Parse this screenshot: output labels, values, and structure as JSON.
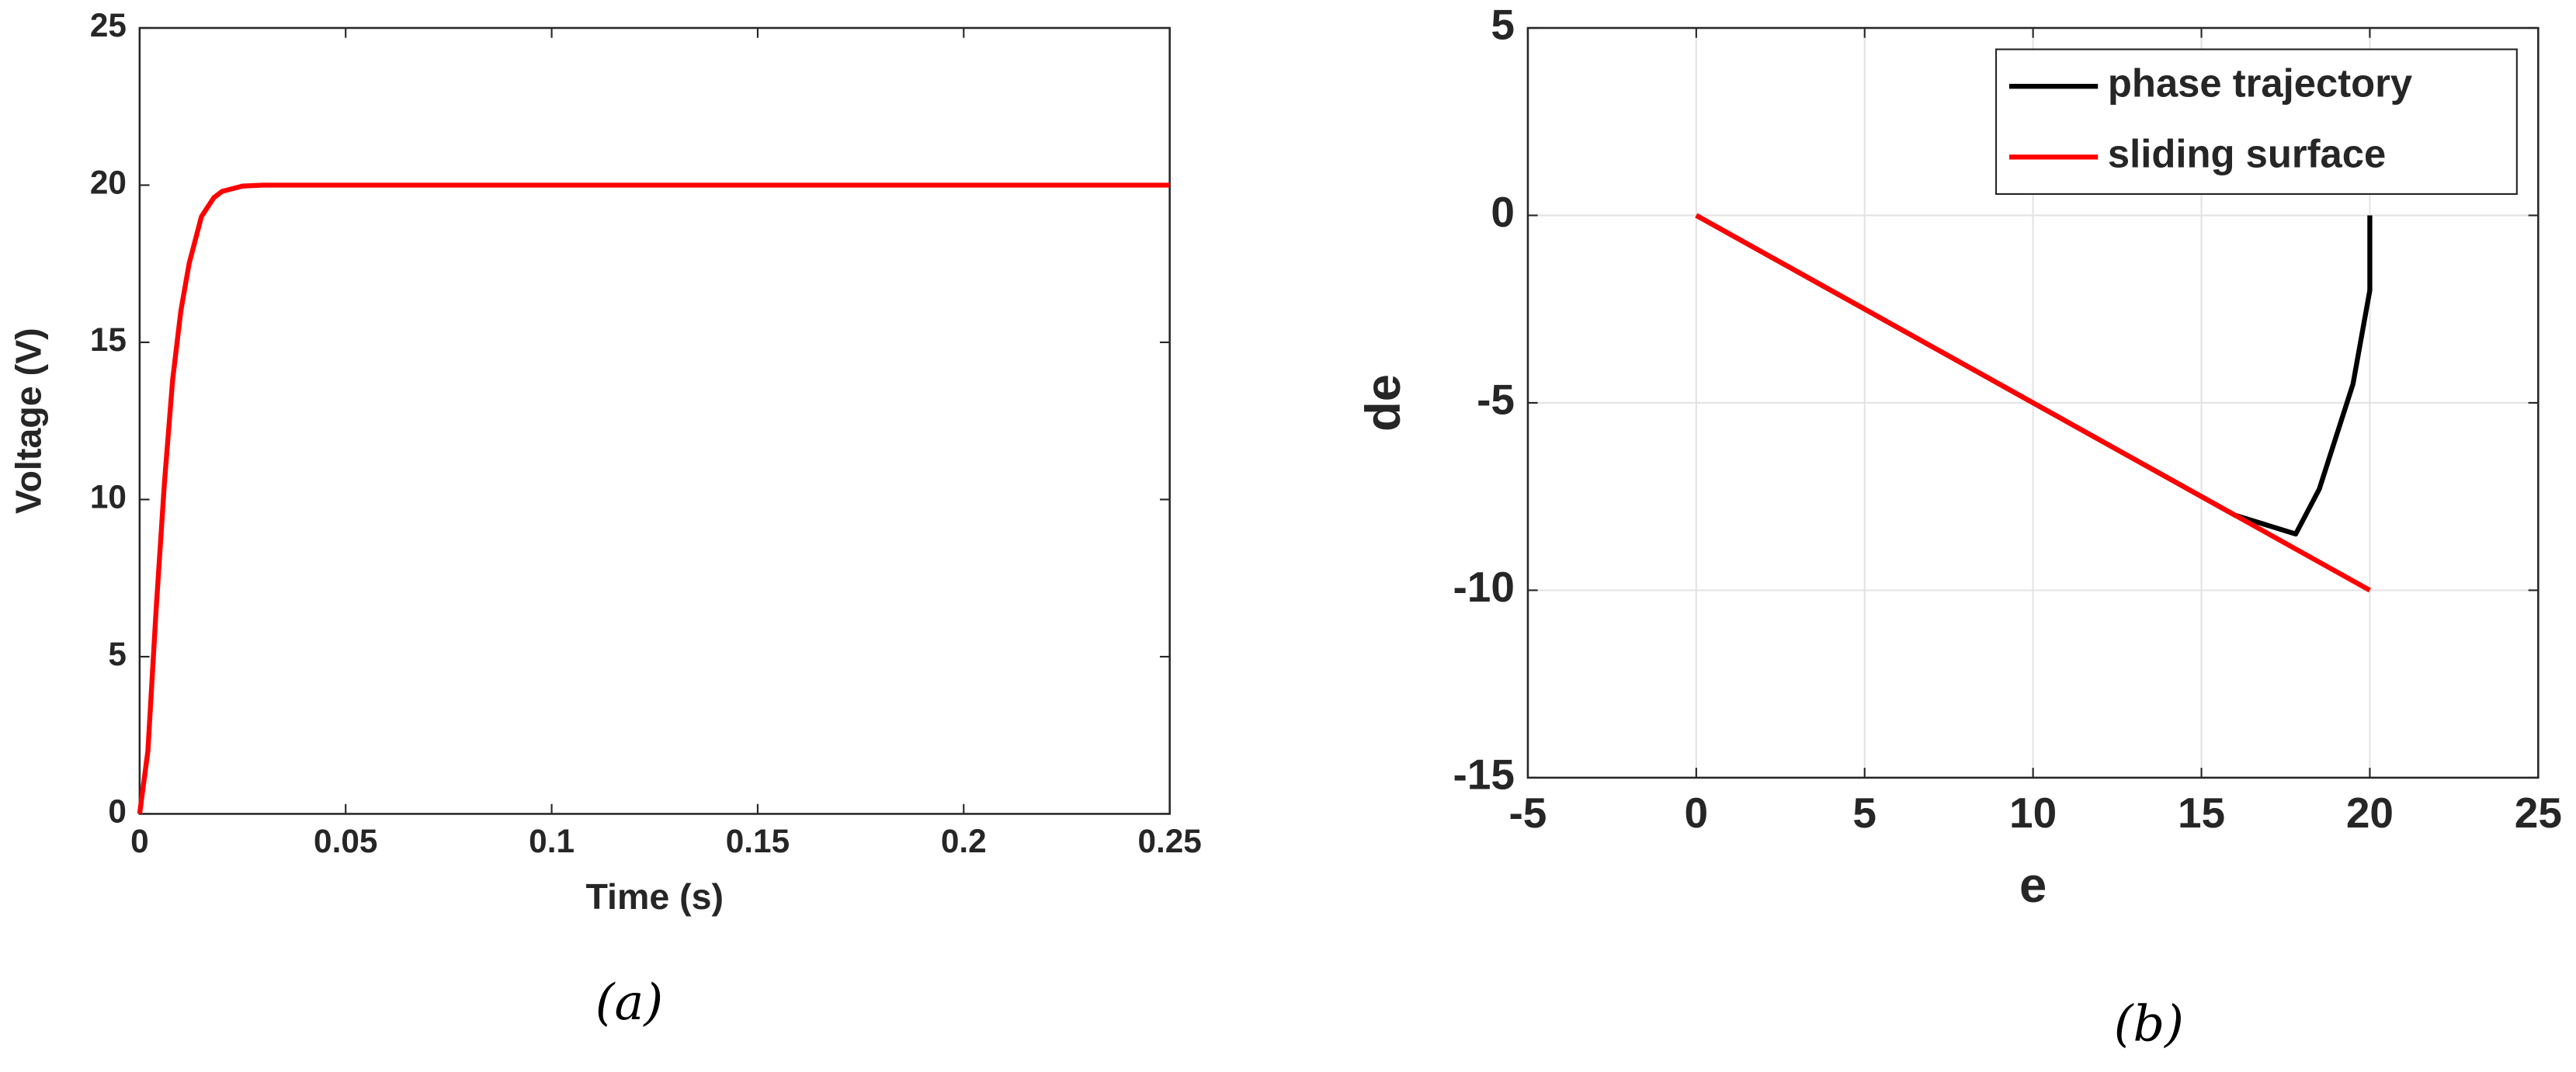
{
  "chart_data": [
    {
      "type": "line",
      "caption": "(a)",
      "x_label": "Time (s)",
      "y_label": "Voltage (V)",
      "x": [
        0,
        0.002,
        0.004,
        0.006,
        0.008,
        0.01,
        0.012,
        0.015,
        0.018,
        0.02,
        0.025,
        0.03,
        0.05,
        0.1,
        0.15,
        0.2,
        0.25
      ],
      "series": [
        {
          "name": "Voltage",
          "color": "#ff0000",
          "values": [
            0,
            2,
            6.5,
            10.5,
            13.8,
            16,
            17.5,
            19,
            19.6,
            19.8,
            19.97,
            20,
            20,
            20,
            20,
            20,
            20
          ]
        }
      ],
      "xlim": [
        0,
        0.25
      ],
      "xticks": [
        0,
        0.05,
        0.1,
        0.15,
        0.2,
        0.25
      ],
      "ylim": [
        0,
        25
      ],
      "yticks": [
        0,
        5,
        10,
        15,
        20,
        25
      ],
      "grid": false,
      "legend": false
    },
    {
      "type": "line",
      "caption": "(b)",
      "x_label": "e",
      "y_label": "de",
      "series": [
        {
          "name": "phase trajectory",
          "color": "#000000",
          "x": [
            20,
            20,
            19.5,
            18.5,
            17.8,
            16,
            14,
            12,
            10,
            8,
            6,
            4,
            2,
            0
          ],
          "values": [
            0,
            -2,
            -4.5,
            -7.3,
            -8.5,
            -8,
            -7,
            -6,
            -5,
            -4,
            -3,
            -2,
            -1,
            0
          ]
        },
        {
          "name": "sliding surface",
          "color": "#ff0000",
          "x": [
            0,
            20
          ],
          "values": [
            0,
            -10
          ]
        }
      ],
      "xlim": [
        -5,
        25
      ],
      "xticks": [
        -5,
        0,
        5,
        10,
        15,
        20,
        25
      ],
      "ylim": [
        -15,
        5
      ],
      "yticks": [
        -15,
        -10,
        -5,
        0,
        5
      ],
      "grid": true,
      "legend": "upper right"
    }
  ]
}
